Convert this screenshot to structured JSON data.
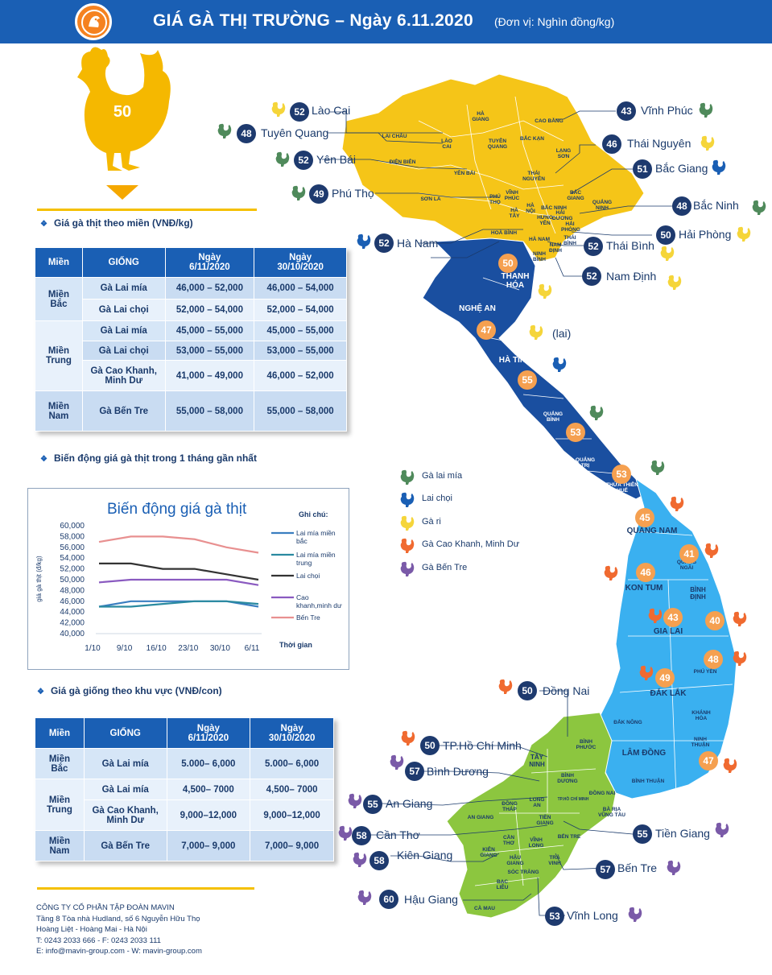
{
  "header": {
    "title": "GIÁ GÀ THỊ TRƯỜNG – Ngày 6.11.2020",
    "unit": "(Đơn vị: Nghìn đồng/kg)"
  },
  "hero": {
    "value": "50"
  },
  "colors": {
    "lai_mia": "#4f8a5b",
    "lai_choi": "#1a5fb4",
    "ga_ri": "#f5d53a",
    "cao_khanh": "#f06a30",
    "ben_tre": "#7a5aa8",
    "north": "#f5c518",
    "central": "#1a4fa0",
    "south_central": "#3ab0f0",
    "south": "#8cc63f"
  },
  "sections": {
    "meat_price_by_region": "Giá gà thịt theo miền (VNĐ/kg)",
    "meat_price_trend": "Biến động giá gà thịt trong 1 tháng gần nhất",
    "chick_price_by_region": "Giá gà giống theo khu vực (VNĐ/con)"
  },
  "meat_table": {
    "headers": [
      "Miền",
      "GIỐNG",
      "Ngày\n6/11/2020",
      "Ngày\n30/10/2020"
    ],
    "rows": [
      {
        "region": "Miền\nBắc",
        "breed": "Gà Lai mía",
        "d1": "46,000 – 52,000",
        "d2": "46,000 – 54,000"
      },
      {
        "region": "",
        "breed": "Gà Lai chọi",
        "d1": "52,000 – 54,000",
        "d2": "52,000 – 54,000"
      },
      {
        "region": "Miền\nTrung",
        "breed": "Gà Lai mía",
        "d1": "45,000 – 55,000",
        "d2": "45,000 – 55,000"
      },
      {
        "region": "",
        "breed": "Gà Lai chọi",
        "d1": "53,000 – 55,000",
        "d2": "53,000 – 55,000"
      },
      {
        "region": "",
        "breed": "Gà Cao Khanh,\nMinh Dư",
        "d1": "41,000 – 49,000",
        "d2": "46,000 – 52,000"
      },
      {
        "region": "Miền\nNam",
        "breed": "Gà Bến Tre",
        "d1": "55,000 – 58,000",
        "d2": "55,000 – 58,000"
      }
    ]
  },
  "chick_table": {
    "headers": [
      "Miền",
      "GIỐNG",
      "Ngày\n6/11/2020",
      "Ngày\n30/10/2020"
    ],
    "rows": [
      {
        "region": "Miền\nBắc",
        "breed": "Gà Lai mía",
        "d1": "5.000– 6,000",
        "d2": "5.000– 6,000"
      },
      {
        "region": "Miền\nTrung",
        "breed": "Gà Lai mía",
        "d1": "4,500– 7000",
        "d2": "4,500– 7000"
      },
      {
        "region": "",
        "breed": "Gà Cao Khanh,\nMinh Dư",
        "d1": "9,000–12,000",
        "d2": "9,000–12,000"
      },
      {
        "region": "Miền\nNam",
        "breed": "Gà Bến Tre",
        "d1": "7,000– 9,000",
        "d2": "7,000– 9,000"
      }
    ]
  },
  "chart_data": {
    "type": "line",
    "title": "Biến động giá gà thịt",
    "xlabel": "Thời gian",
    "ylabel": "giá gà thịt (đ/kg)",
    "categories": [
      "1/10",
      "9/10",
      "16/10",
      "23/10",
      "30/10",
      "6/11"
    ],
    "ylim": [
      40000,
      60000
    ],
    "yticks": [
      "40,000",
      "42,000",
      "44,000",
      "46,000",
      "48,000",
      "50,000",
      "52,000",
      "54,000",
      "56,000",
      "58,000",
      "60,000"
    ],
    "legend_title": "Ghi chú:",
    "legend_position": "right",
    "series": [
      {
        "name": "Lai mía miền bắc",
        "color": "#3a7ec0",
        "values": [
          45000,
          46000,
          46000,
          46000,
          46000,
          45000
        ]
      },
      {
        "name": "Lai mía miền trung",
        "color": "#2a8aa0",
        "values": [
          45000,
          45000,
          45500,
          46000,
          46000,
          45500
        ]
      },
      {
        "name": "Lai chọi",
        "color": "#333333",
        "values": [
          53000,
          53000,
          52000,
          52000,
          51000,
          50000
        ]
      },
      {
        "name": "Cao khanh,minh dư",
        "color": "#8a5ac0",
        "values": [
          49500,
          50000,
          50000,
          50000,
          50000,
          49000
        ]
      },
      {
        "name": "Bến Tre",
        "color": "#e89090",
        "values": [
          57000,
          58000,
          58000,
          57500,
          56000,
          55000
        ]
      }
    ]
  },
  "legend": {
    "items": [
      {
        "label": "Gà lai mía",
        "icon": "hen-green-icon"
      },
      {
        "label": "Lai chọi",
        "icon": "hen-blue-icon"
      },
      {
        "label": "Gà ri",
        "icon": "hen-yellow-icon"
      },
      {
        "label": "Gà Cao Khanh, Minh Dư",
        "icon": "hen-orange-icon"
      },
      {
        "label": "Gà Bến Tre",
        "icon": "hen-purple-icon"
      }
    ]
  },
  "provinces": {
    "lao_cai": {
      "name": "Lào Cai",
      "price": "52"
    },
    "tuyen_quang": {
      "name": "Tuyên Quang",
      "price": "48"
    },
    "yen_bai": {
      "name": "Yên Bái",
      "price": "52"
    },
    "phu_tho": {
      "name": "Phú Thọ",
      "price": "49"
    },
    "ha_nam": {
      "name": "Hà Nam",
      "price": "52"
    },
    "vinh_phuc": {
      "name": "Vĩnh Phúc",
      "price": "43"
    },
    "thai_nguyen": {
      "name": "Thái Nguyên",
      "price": "46"
    },
    "bac_giang": {
      "name": "Bắc Giang",
      "price": "51"
    },
    "bac_ninh": {
      "name": "Bắc Ninh",
      "price": "48"
    },
    "hai_phong": {
      "name": "Hải Phòng",
      "price": "50"
    },
    "thai_binh": {
      "name": "Thái Bình",
      "price": "52"
    },
    "nam_dinh": {
      "name": "Nam Định",
      "price": "52"
    },
    "lai_note": "(lai)",
    "thanh_hoa": {
      "price": "50"
    },
    "nghe_an": {
      "price": "47"
    },
    "ha_tinh": {
      "price": "55"
    },
    "quang_binh": {
      "price": "53"
    },
    "quang_tri": {
      "price": "53"
    },
    "quang_nam": {
      "price": "45"
    },
    "quang_ngai": {
      "price": "41"
    },
    "kon_tum": {
      "price": "46"
    },
    "binh_dinh": {
      "price": "40"
    },
    "gia_lai": {
      "price": "43"
    },
    "phu_yen": {
      "price": "48"
    },
    "dak_lak": {
      "price": "49"
    },
    "khanh_hoa": {
      "price": "47"
    },
    "dong_nai": {
      "name": "Đồng Nai",
      "price": "50"
    },
    "hcm": {
      "name": "TP.Hồ Chí Minh",
      "price": "50"
    },
    "binh_duong": {
      "name": "Bình Dương",
      "price": "57"
    },
    "an_giang": {
      "name": "An Giang",
      "price": "55"
    },
    "can_tho": {
      "name": "Cần Thơ",
      "price": "58"
    },
    "kien_giang": {
      "name": "Kiên Giang",
      "price": "58"
    },
    "hau_giang": {
      "name": "Hậu Giang",
      "price": "60"
    },
    "tien_giang": {
      "name": "Tiền Giang",
      "price": "55"
    },
    "ben_tre": {
      "name": "Bến Tre",
      "price": "57"
    },
    "vinh_long": {
      "name": "Vĩnh Long",
      "price": "53"
    }
  },
  "map_labels": {
    "ha_giang": "HÀ\nGIANG",
    "cao_bang": "CAO BẰNG",
    "lai_chau": "LAI CHÂU",
    "lao_cai": "LÀO\nCAI",
    "tuyen_quang": "TUYÊN\nQUANG",
    "bac_kan": "BẮC KẠN",
    "lang_son": "LẠNG\nSƠN",
    "dien_bien": "ĐIỆN BIÊN",
    "yen_bai": "YÊN BÁI",
    "thai_nguyen": "THÁI\nNGUYÊN",
    "vinh_phuc": "VĨNH\nPHÚC",
    "bac_giang": "BẮC\nGIANG",
    "son_la": "SƠN LA",
    "phu_tho": "PHÚ\nTHỌ",
    "ha_noi": "HÀ\nNỘI",
    "quang_ninh": "QUẢNG\nNINH",
    "ha_tay": "HÀ\nTÂY",
    "hung_yen": "HƯNG YÊN",
    "hai_duong": "HẢI\nDƯƠNG",
    "hai_phong": "HẢI\nPHÒNG",
    "bac_ninh": "BẮC NINH",
    "hoa_binh": "HOÀ BÌNH",
    "ha_nam": "HÀ NAM",
    "thai_binh": "THÁI\nBÌNH",
    "nam_dinh": "NAM\nĐỊNH",
    "ninh_binh": "NINH\nBÌNH",
    "thanh_hoa": "THANH\nHÓA",
    "nghe_an": "NGHỆ AN",
    "ha_tinh": "HÀ TĨNH",
    "quang_binh": "QUẢNG\nBÌNH",
    "quang_tri": "QUẢNG\nTRỊ",
    "hue": "THỪA THIÊN\nHUẾ",
    "quang_nam": "QUẢNG NAM",
    "quang_ngai": "QUẢNG\nNGÃI",
    "kon_tum": "KON TUM",
    "binh_dinh": "BÌNH\nĐỊNH",
    "gia_lai": "GIA LAI",
    "phu_yen": "PHÚ YÊN",
    "dak_lak": "ĐẮK LẮK",
    "dak_nong": "ĐẮK NÔNG",
    "khanh_hoa": "KHÁNH\nHÒA",
    "lam_dong": "LÂM ĐỒNG",
    "ninh_thuan": "NINH\nTHUẬN",
    "binh_thuan": "BÌNH THUẬN",
    "binh_phuoc": "BÌNH\nPHƯỚC",
    "tay_ninh": "TÂY\nNINH",
    "binh_duong": "BÌNH\nDƯƠNG",
    "dong_nai": "ĐỒNG NAI",
    "hcm": "TP.HỒ CHÍ MINH",
    "ba_ria": "BÀ RỊA\nVŨNG TÀU",
    "long_an": "LONG\nAN",
    "dong_thap": "ĐỒNG\nTHÁP",
    "an_giang": "AN GIANG",
    "tien_giang": "TIỀN\nGIANG",
    "can_tho": "CẦN\nTHƠ",
    "vinh_long": "VĨNH\nLONG",
    "ben_tre": "BẾN TRE",
    "kien_giang": "KIÊN\nGIANG",
    "hau_giang": "HẬU\nGIANG",
    "tra_vinh": "TRÀ\nVINH",
    "soc_trang": "SÓC TRĂNG",
    "bac_lieu": "BẠC\nLIÊU",
    "ca_mau": "CÀ MAU"
  },
  "company": {
    "line1": "CÔNG TY CỔ PHẦN TẬP ĐOÀN MAVIN",
    "line2": "Tầng 8 Tòa nhà Hudland, số 6 Nguyễn Hữu Thọ",
    "line3": "Hoàng Liệt - Hoàng Mai - Hà Nội",
    "line4": "T: 0243 2033 666 - F: 0243 2033 111",
    "line5": "E: info@mavin-group.com -  W: mavin-group.com"
  }
}
